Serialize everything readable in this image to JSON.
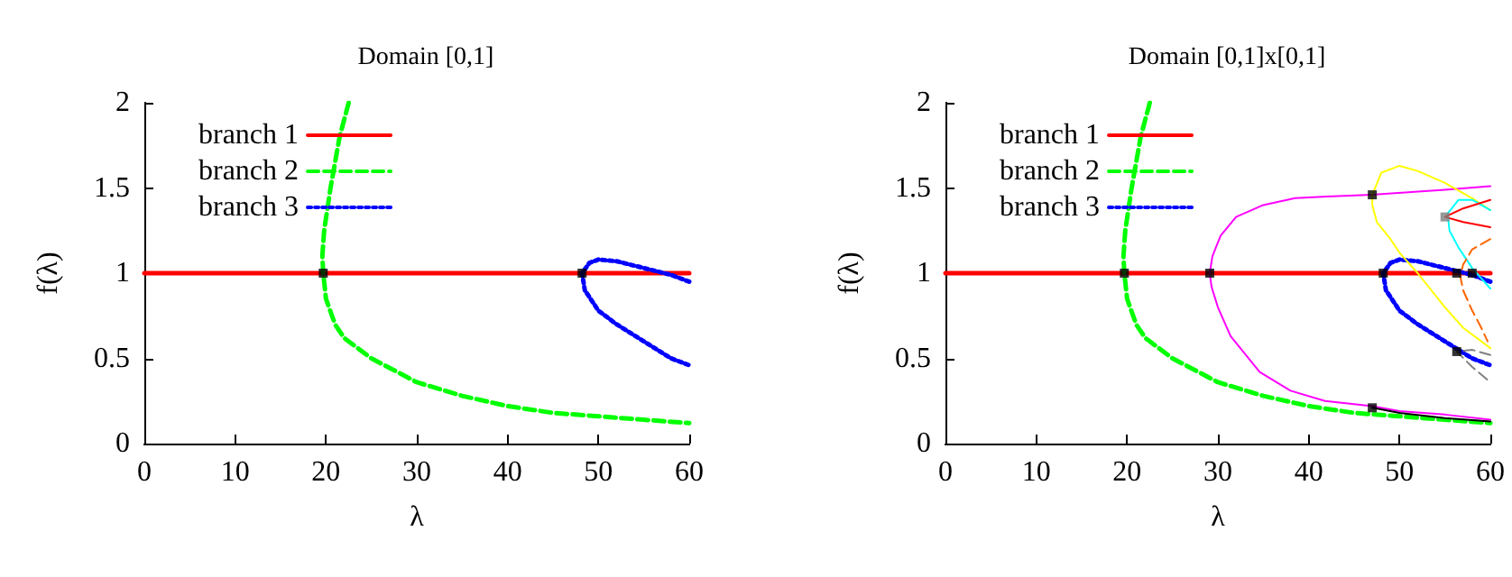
{
  "chart_data": [
    {
      "type": "line",
      "title": "Domain [0,1]",
      "xlabel": "λ",
      "ylabel": "f(λ)",
      "xlim": [
        0,
        60
      ],
      "ylim": [
        0,
        2
      ],
      "xticks": [
        0,
        10,
        20,
        30,
        40,
        50,
        60
      ],
      "yticks": [
        0,
        0.5,
        1,
        1.5,
        2
      ],
      "grid": false,
      "legend": "top left",
      "series": [
        {
          "name": "branch 1",
          "color": "#ff0000",
          "line_style": "solid",
          "marker": "none",
          "x": [
            0,
            60
          ],
          "values": [
            1,
            1
          ]
        },
        {
          "name": "branch 2",
          "color": "#00ff00",
          "line_style": "dashed",
          "marker": "none",
          "x": [
            22.5,
            21.5,
            20.5,
            19.8,
            19.6,
            19.7,
            20,
            21,
            22,
            25,
            30,
            35,
            40,
            45,
            50,
            55,
            60
          ],
          "values": [
            2,
            1.8,
            1.5,
            1.25,
            1.1,
            1,
            0.85,
            0.7,
            0.62,
            0.5,
            0.36,
            0.28,
            0.22,
            0.18,
            0.16,
            0.14,
            0.12
          ]
        },
        {
          "name": "branch 3",
          "color": "#0000ff",
          "line_style": "dotted",
          "marker": "none",
          "x": [
            60,
            58,
            55,
            52,
            50,
            49,
            48.2,
            48.5,
            50,
            52,
            55,
            58,
            60
          ],
          "values": [
            0.95,
            0.99,
            1.03,
            1.07,
            1.08,
            1.06,
            1,
            0.9,
            0.78,
            0.7,
            0.6,
            0.5,
            0.46
          ]
        },
        {
          "type": "scatter",
          "color": "#000000",
          "marker": "square",
          "x": [
            19.7,
            48.2
          ],
          "values": [
            1,
            1
          ]
        }
      ]
    },
    {
      "type": "line",
      "title": "Domain [0,1]x[0,1]",
      "xlabel": "λ",
      "ylabel": "f(λ)",
      "xlim": [
        0,
        60
      ],
      "ylim": [
        0,
        2
      ],
      "xticks": [
        0,
        10,
        20,
        30,
        40,
        50,
        60
      ],
      "yticks": [
        0,
        0.5,
        1,
        1.5,
        2
      ],
      "grid": false,
      "legend": "top left",
      "series": [
        {
          "name": "branch 1",
          "color": "#ff0000",
          "line_style": "solid",
          "marker": "none",
          "x": [
            0,
            60
          ],
          "values": [
            1,
            1
          ]
        },
        {
          "name": "branch 2",
          "color": "#00ff00",
          "line_style": "dashed",
          "marker": "none",
          "x": [
            22.5,
            21.5,
            20.5,
            19.8,
            19.6,
            19.7,
            20,
            21,
            22,
            25,
            30,
            35,
            40,
            45,
            50,
            55,
            60
          ],
          "values": [
            2,
            1.8,
            1.5,
            1.25,
            1.1,
            1,
            0.85,
            0.7,
            0.62,
            0.5,
            0.36,
            0.28,
            0.22,
            0.18,
            0.16,
            0.14,
            0.12
          ]
        },
        {
          "name": "branch 3",
          "color": "#0000ff",
          "line_style": "dotted",
          "marker": "none",
          "x": [
            60,
            58,
            55,
            52,
            50,
            49,
            48.2,
            48.5,
            50,
            52,
            55,
            58,
            60
          ],
          "values": [
            0.95,
            0.99,
            1.03,
            1.07,
            1.08,
            1.06,
            1,
            0.9,
            0.78,
            0.7,
            0.6,
            0.5,
            0.46
          ]
        },
        {
          "color": "#ff00ff",
          "line_style": "solid",
          "marker": "none",
          "x": [
            60,
            55,
            50,
            47,
            41.8,
            38,
            34.6,
            31.4,
            30,
            29.3,
            29.1,
            29.4,
            30.3,
            32,
            35,
            38.5,
            42,
            47,
            55,
            60
          ],
          "values": [
            0.14,
            0.17,
            0.19,
            0.22,
            0.25,
            0.31,
            0.42,
            0.63,
            0.8,
            0.92,
            1,
            1.1,
            1.22,
            1.33,
            1.4,
            1.44,
            1.45,
            1.46,
            1.49,
            1.51
          ]
        },
        {
          "color": "#000000",
          "line_style": "solid",
          "marker": "none",
          "x": [
            47,
            50,
            55,
            60
          ],
          "values": [
            0.21,
            0.18,
            0.15,
            0.13
          ]
        },
        {
          "color": "#ffff00",
          "line_style": "solid",
          "marker": "none",
          "x": [
            60,
            58,
            55,
            52,
            50,
            48,
            47,
            47,
            47.5,
            49,
            50,
            52,
            55,
            57,
            60
          ],
          "values": [
            1.37,
            1.44,
            1.53,
            1.6,
            1.63,
            1.59,
            1.46,
            1.4,
            1.3,
            1.2,
            1.12,
            1,
            0.8,
            0.68,
            0.56
          ]
        },
        {
          "color": "#00ffff",
          "line_style": "solid",
          "marker": "none",
          "x": [
            60,
            58,
            56.5,
            55.3,
            55.5,
            56.5,
            58,
            60
          ],
          "values": [
            1.37,
            1.43,
            1.43,
            1.35,
            1.25,
            1.15,
            1.03,
            0.91
          ]
        },
        {
          "color": "#ff0000",
          "line_style": "solid",
          "marker": "none",
          "x": [
            60,
            57,
            55,
            57,
            60
          ],
          "values": [
            1.43,
            1.38,
            1.33,
            1.3,
            1.27
          ]
        },
        {
          "color": "#ff6600",
          "line_style": "dashed",
          "marker": "none",
          "x": [
            60,
            58,
            57,
            56.7,
            57,
            58,
            59,
            59.7
          ],
          "values": [
            1.2,
            1.14,
            1.05,
            0.98,
            0.9,
            0.78,
            0.68,
            0.6
          ]
        },
        {
          "color": "#808080",
          "line_style": "dashed",
          "marker": "none",
          "x": [
            60,
            58,
            56.3,
            58,
            60
          ],
          "values": [
            0.52,
            0.55,
            0.54,
            0.45,
            0.36
          ]
        },
        {
          "type": "scatter",
          "color": "#808080",
          "marker": "square",
          "x": [
            55
          ],
          "values": [
            1.33
          ]
        },
        {
          "type": "scatter",
          "color": "#000000",
          "marker": "square",
          "x": [
            19.7,
            29.1,
            48.2,
            56.3,
            58,
            47,
            47,
            56.3
          ],
          "values": [
            1,
            1,
            1,
            1,
            1,
            1.46,
            0.21,
            0.54
          ]
        }
      ]
    }
  ]
}
